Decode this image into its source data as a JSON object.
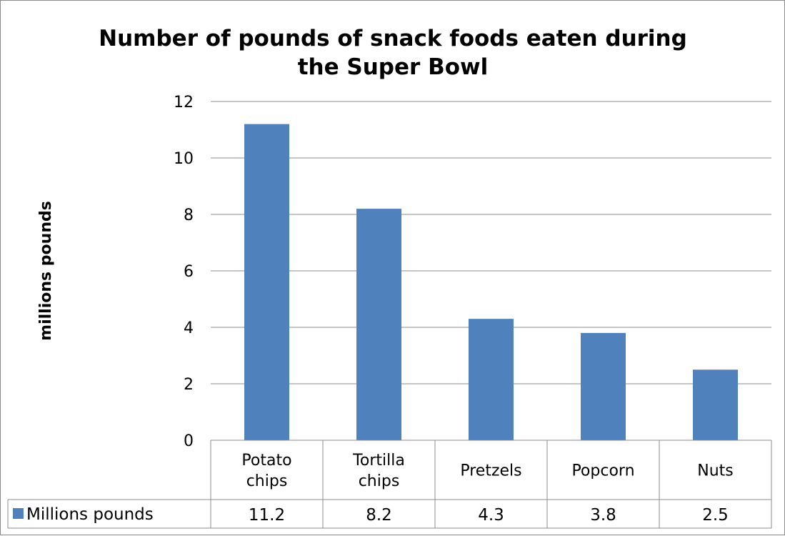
{
  "chart_data": {
    "type": "bar",
    "title": "Number of pounds of snack foods eaten during the Super Bowl",
    "title_lines": [
      "Number of pounds of snack foods eaten during",
      "the Super Bowl"
    ],
    "ylabel": "millions pounds",
    "xlabel": "",
    "ylim": [
      0,
      12
    ],
    "yticks": [
      0,
      2,
      4,
      6,
      8,
      10,
      12
    ],
    "grid": true,
    "categories": [
      "Potato chips",
      "Tortilla chips",
      "Pretzels",
      "Popcorn",
      "Nuts"
    ],
    "category_lines": [
      [
        "Potato",
        "chips"
      ],
      [
        "Tortilla",
        "chips"
      ],
      [
        "Pretzels"
      ],
      [
        "Popcorn"
      ],
      [
        "Nuts"
      ]
    ],
    "series": [
      {
        "name": "Millions pounds",
        "values": [
          11.2,
          8.2,
          4.3,
          3.8,
          2.5
        ],
        "value_labels": [
          "11.2",
          "8.2",
          "4.3",
          "3.8",
          "2.5"
        ],
        "color": "#4f81bd"
      }
    ],
    "data_table": true
  }
}
